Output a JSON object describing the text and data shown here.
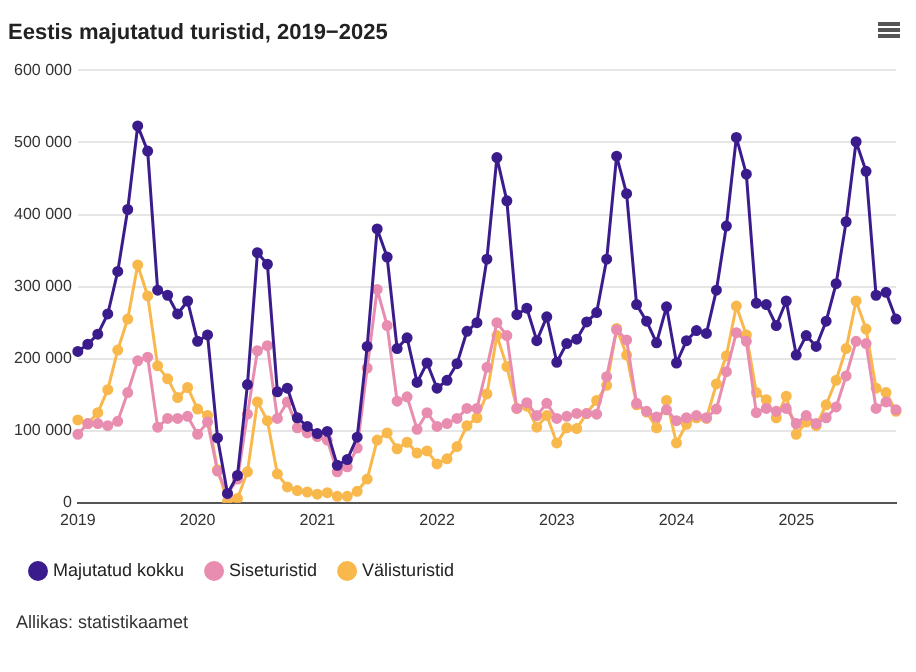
{
  "chart_data": {
    "type": "line",
    "title": "Eestis majutatud turistid, 2019−2025",
    "categories": [
      "2019",
      null,
      null,
      null,
      null,
      null,
      null,
      null,
      null,
      null,
      null,
      null,
      "2020",
      null,
      null,
      null,
      null,
      null,
      null,
      null,
      null,
      null,
      null,
      null,
      "2021",
      null,
      null,
      null,
      null,
      null,
      null,
      null,
      null,
      null,
      null,
      null,
      "2022",
      null,
      null,
      null,
      null,
      null,
      null,
      null,
      null,
      null,
      null,
      null,
      "2023",
      null,
      null,
      null,
      null,
      null,
      null,
      null,
      null,
      null,
      null,
      null,
      "2024",
      null,
      null,
      null,
      null,
      null,
      null,
      null,
      null,
      null,
      null,
      null,
      "2025",
      null,
      null,
      null,
      null,
      null,
      null,
      null,
      null,
      null,
      null
    ],
    "series": [
      {
        "name": "Majutatud kokku",
        "color": "#3b1c8c",
        "values": [
          210000,
          220000,
          234000,
          262000,
          321000,
          407000,
          523000,
          488000,
          295000,
          288000,
          262000,
          280000,
          224000,
          233000,
          90000,
          13000,
          38000,
          164000,
          347000,
          331000,
          154000,
          159000,
          118000,
          106000,
          96000,
          99000,
          52000,
          60000,
          91000,
          217000,
          380000,
          341000,
          214000,
          229000,
          167000,
          194000,
          159000,
          170000,
          193000,
          238000,
          250000,
          338000,
          479000,
          419000,
          261000,
          270000,
          225000,
          258000,
          195000,
          221000,
          227000,
          251000,
          264000,
          338000,
          481000,
          429000,
          275000,
          252000,
          222000,
          272000,
          194000,
          225000,
          239000,
          235000,
          295000,
          384000,
          507000,
          456000,
          277000,
          275000,
          246000,
          280000,
          205000,
          232000,
          217000,
          252000,
          304000,
          390000,
          501000,
          460000,
          288000,
          292000,
          255000
        ]
      },
      {
        "name": "Siseturistid",
        "color": "#e98db0",
        "values": [
          95000,
          110000,
          110000,
          107000,
          113000,
          153000,
          197000,
          202000,
          105000,
          117000,
          117000,
          120000,
          95000,
          112000,
          44000,
          12000,
          33000,
          123000,
          211000,
          218000,
          117000,
          140000,
          104000,
          97000,
          92000,
          87000,
          43000,
          50000,
          76000,
          187000,
          296000,
          246000,
          141000,
          147000,
          102000,
          125000,
          106000,
          110000,
          117000,
          131000,
          131000,
          188000,
          250000,
          232000,
          131000,
          139000,
          121000,
          138000,
          117000,
          120000,
          124000,
          124000,
          123000,
          175000,
          240000,
          226000,
          138000,
          127000,
          119000,
          129000,
          114000,
          118000,
          121000,
          118000,
          130000,
          182000,
          236000,
          224000,
          125000,
          131000,
          127000,
          131000,
          110000,
          121000,
          110000,
          118000,
          133000,
          176000,
          224000,
          221000,
          131000,
          140000,
          129000
        ]
      },
      {
        "name": "Välisturistid",
        "color": "#f8b84c",
        "values": [
          115000,
          110000,
          125000,
          157000,
          212000,
          255000,
          330000,
          287000,
          190000,
          172000,
          146000,
          160000,
          130000,
          121000,
          46000,
          2000,
          6000,
          43000,
          140000,
          114000,
          40000,
          22000,
          17000,
          15000,
          12000,
          14000,
          9000,
          9000,
          16000,
          33000,
          87000,
          97000,
          75000,
          84000,
          69000,
          72000,
          54000,
          61000,
          78000,
          107000,
          118000,
          151000,
          232000,
          189000,
          131000,
          134000,
          105000,
          121000,
          83000,
          104000,
          103000,
          124000,
          142000,
          163000,
          242000,
          205000,
          136000,
          126000,
          104000,
          142000,
          83000,
          109000,
          118000,
          117000,
          165000,
          204000,
          273000,
          233000,
          153000,
          143000,
          118000,
          148000,
          95000,
          112000,
          107000,
          136000,
          170000,
          214000,
          280000,
          241000,
          159000,
          153000,
          127000
        ]
      }
    ],
    "ylim": [
      0,
      600000
    ],
    "yticks": [
      0,
      {
        "value": 100000,
        "label": "100 000"
      },
      {
        "value": 200000,
        "label": "200 000"
      },
      {
        "value": 300000,
        "label": "300 000"
      },
      {
        "value": 400000,
        "label": "400 000"
      },
      {
        "value": 500000,
        "label": "500 000"
      },
      {
        "value": 600000,
        "label": "600 000"
      }
    ],
    "grid": "y",
    "legend": "bottom left",
    "marker": "circle",
    "line_style": "solid",
    "annotations": [
      "Allikas: statistikaamet"
    ]
  }
}
